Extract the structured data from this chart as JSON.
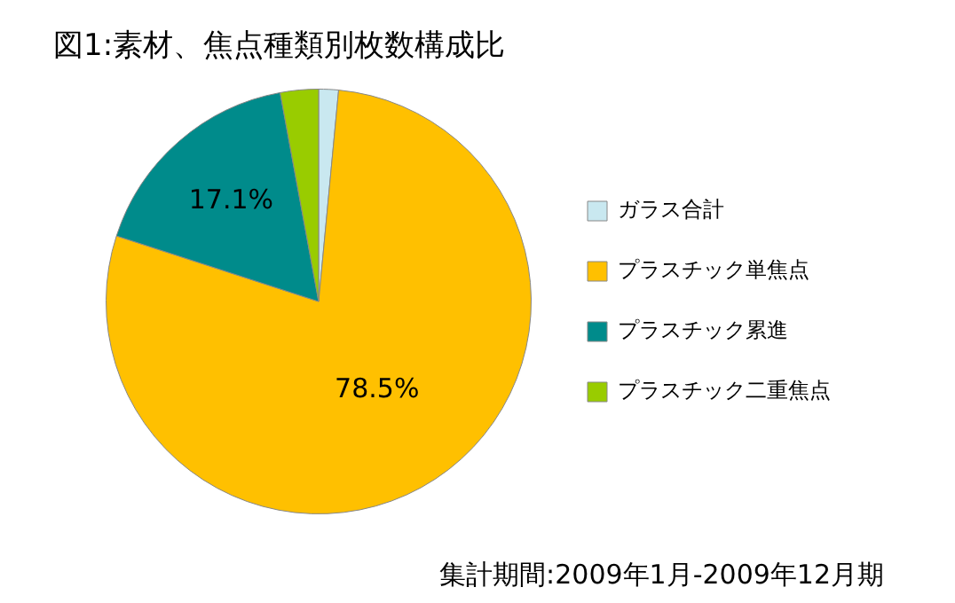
{
  "chart_data": {
    "type": "pie",
    "title": "図1:素材、焦点種類別枚数構成比",
    "categories": [
      "ガラス合計",
      "プラスチック単焦点",
      "プラスチック累進",
      "プラスチック二重焦点"
    ],
    "values": [
      1.5,
      78.5,
      17.1,
      2.9
    ],
    "colors": [
      "#c9e8f0",
      "#ffc000",
      "#008b8b",
      "#99cc00"
    ],
    "value_labels": [
      null,
      "78.5%",
      "17.1%",
      null
    ],
    "legend": "right",
    "annotations": [
      "集計期間:2009年1月-2009年12月期"
    ]
  }
}
